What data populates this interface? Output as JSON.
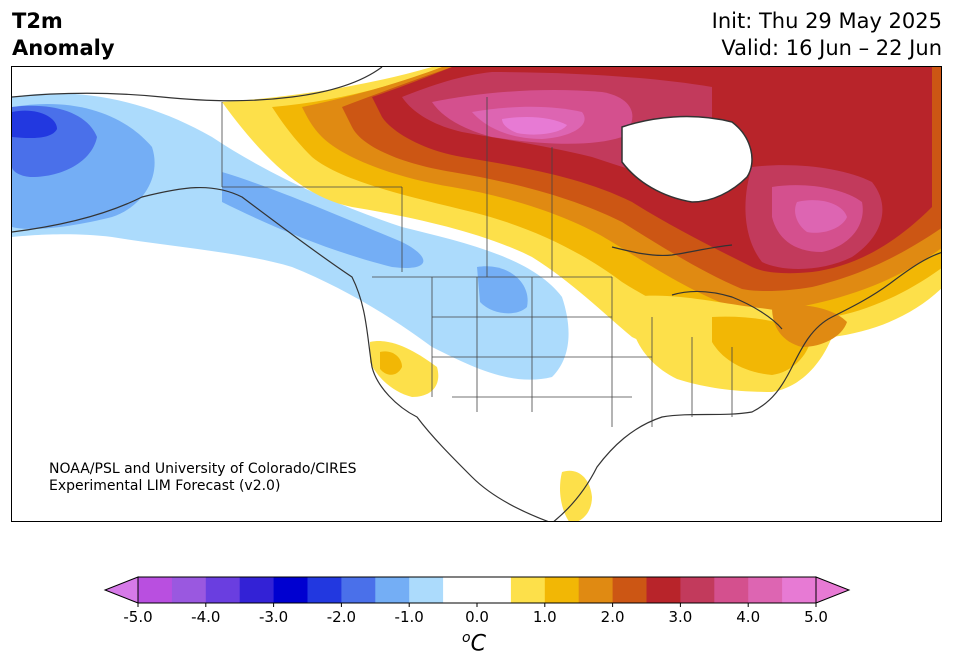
{
  "title": {
    "variable": "T2m",
    "subtitle": "Anomaly"
  },
  "init_label": "Init: Thu 29 May 2025",
  "valid_label": "Valid: 16 Jun – 22 Jun",
  "credit_line1": "NOAA/PSL and University of Colorado/CIRES",
  "credit_line2": "Experimental LIM Forecast (v2.0)",
  "colorbar": {
    "min": -5.0,
    "max": 5.0,
    "step": 0.5,
    "tick_labels": [
      "-5.0",
      "-4.0",
      "-3.0",
      "-2.0",
      "-1.0",
      "0.0",
      "1.0",
      "2.0",
      "3.0",
      "4.0",
      "5.0"
    ],
    "colors": [
      "#b94fe0",
      "#9a58e0",
      "#6a3ee0",
      "#3322d6",
      "#0000d0",
      "#2238e0",
      "#4a70ea",
      "#74aef5",
      "#acdbfc",
      "#ffffff",
      "#ffffff",
      "#fde04a",
      "#f2b705",
      "#e08a12",
      "#cc5614",
      "#b8242a",
      "#c23a5c",
      "#d4508e",
      "#dd65b2",
      "#e77ad4"
    ],
    "under_color": "#d67ae8",
    "over_color": "#e77ad4",
    "unit_symbol": "C",
    "unit_degree": "o"
  }
}
